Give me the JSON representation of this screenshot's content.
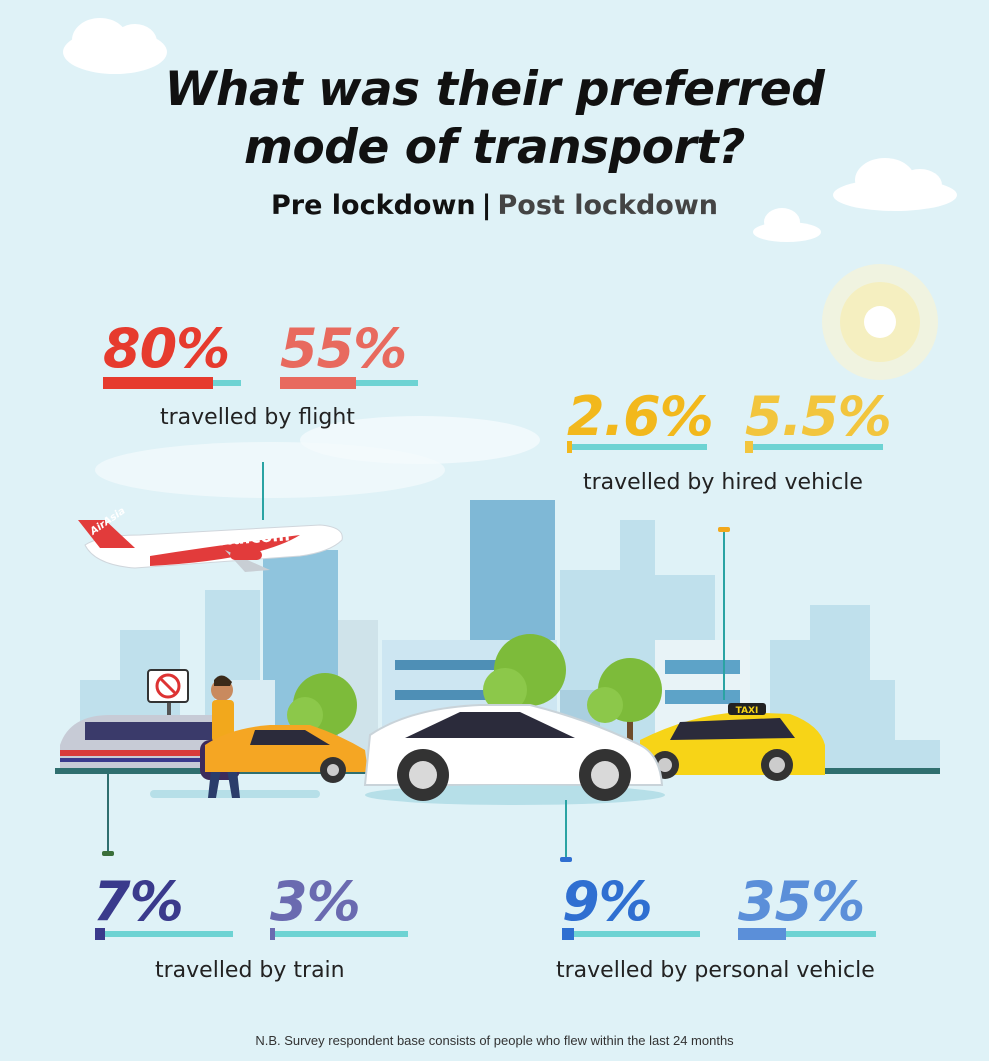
{
  "title_line1": "What was their preferred",
  "title_line2": "mode of transport?",
  "legend": {
    "pre": "Pre lockdown",
    "separator": "|",
    "post": "Post lockdown"
  },
  "footnote": "N.B. Survey respondent base consists of people who flew within the last 24 months",
  "plane_livery": {
    "logo": "AirAsia",
    "url": "airasia.com"
  },
  "taxi_sign": "TAXI",
  "colors": {
    "flight": "#e63b2e",
    "flight_post": "#e86a5e",
    "hired": "#f2b81c",
    "hired_post": "#f2c53d",
    "train": "#3a3a8c",
    "train_post": "#6a6ab0",
    "personal": "#2f6fd1",
    "personal_post": "#5b8fd9",
    "track": "#6dd3d3"
  },
  "chart_data": {
    "type": "bar",
    "title": "What was their preferred mode of transport?",
    "series_names": [
      "Pre lockdown",
      "Post lockdown"
    ],
    "categories": [
      {
        "key": "flight",
        "label": "travelled by flight",
        "pre": 80,
        "post": 55,
        "pre_label": "80%",
        "post_label": "55%"
      },
      {
        "key": "hired",
        "label": "travelled by hired vehicle",
        "pre": 2.6,
        "post": 5.5,
        "pre_label": "2.6%",
        "post_label": "5.5%"
      },
      {
        "key": "train",
        "label": "travelled by train",
        "pre": 7,
        "post": 3,
        "pre_label": "7%",
        "post_label": "3%"
      },
      {
        "key": "personal",
        "label": "travelled by personal vehicle",
        "pre": 9,
        "post": 35,
        "pre_label": "9%",
        "post_label": "35%"
      }
    ],
    "unit": "%",
    "ylim": [
      0,
      100
    ]
  }
}
